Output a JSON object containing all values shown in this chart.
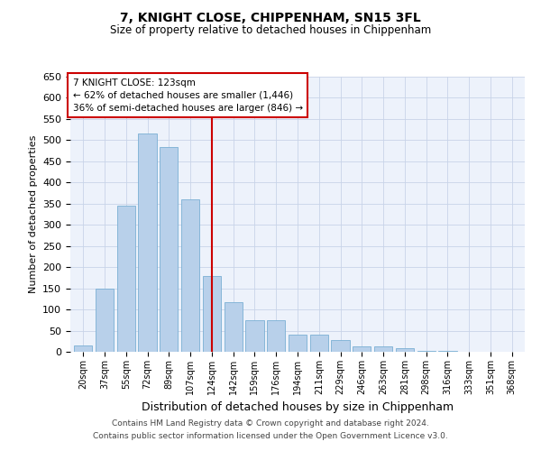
{
  "title": "7, KNIGHT CLOSE, CHIPPENHAM, SN15 3FL",
  "subtitle": "Size of property relative to detached houses in Chippenham",
  "xlabel": "Distribution of detached houses by size in Chippenham",
  "ylabel": "Number of detached properties",
  "categories": [
    "20sqm",
    "37sqm",
    "55sqm",
    "72sqm",
    "89sqm",
    "107sqm",
    "124sqm",
    "142sqm",
    "159sqm",
    "176sqm",
    "194sqm",
    "211sqm",
    "229sqm",
    "246sqm",
    "263sqm",
    "281sqm",
    "298sqm",
    "316sqm",
    "333sqm",
    "351sqm",
    "368sqm"
  ],
  "values": [
    15,
    150,
    345,
    515,
    483,
    360,
    178,
    117,
    75,
    75,
    40,
    40,
    28,
    13,
    13,
    8,
    3,
    2,
    1,
    1,
    0
  ],
  "bar_color": "#b8d0ea",
  "bar_edge_color": "#7aafd4",
  "vline_x": 6,
  "vline_color": "#cc0000",
  "ylim": [
    0,
    650
  ],
  "yticks": [
    0,
    50,
    100,
    150,
    200,
    250,
    300,
    350,
    400,
    450,
    500,
    550,
    600,
    650
  ],
  "annotation_title": "7 KNIGHT CLOSE: 123sqm",
  "annotation_line1": "← 62% of detached houses are smaller (1,446)",
  "annotation_line2": "36% of semi-detached houses are larger (846) →",
  "annotation_box_color": "#cc0000",
  "background_color": "#edf2fb",
  "footer_line1": "Contains HM Land Registry data © Crown copyright and database right 2024.",
  "footer_line2": "Contains public sector information licensed under the Open Government Licence v3.0.",
  "grid_color": "#c8d4e8"
}
